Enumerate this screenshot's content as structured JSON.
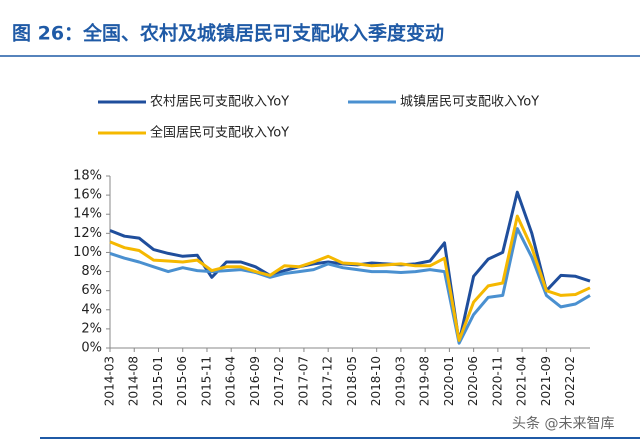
{
  "chart_data": {
    "type": "line",
    "title": "图 26：全国、农村及城镇居民可支配收入季度变动",
    "watermark": "头条 @未来智库",
    "x": [
      "2014-03",
      "2014-06",
      "2014-09",
      "2014-12",
      "2015-03",
      "2015-06",
      "2015-09",
      "2015-12",
      "2016-03",
      "2016-06",
      "2016-09",
      "2016-12",
      "2017-03",
      "2017-06",
      "2017-09",
      "2017-12",
      "2018-03",
      "2018-06",
      "2018-09",
      "2018-12",
      "2019-03",
      "2019-06",
      "2019-09",
      "2019-12",
      "2020-03",
      "2020-06",
      "2020-09",
      "2020-12",
      "2021-03",
      "2021-06",
      "2021-09",
      "2021-12",
      "2022-03",
      "2022-06"
    ],
    "xlim": [
      "2014-03",
      "2022-06"
    ],
    "xticks": [
      "2014-03",
      "2014-08",
      "2015-01",
      "2015-06",
      "2015-11",
      "2016-04",
      "2016-09",
      "2017-02",
      "2017-07",
      "2017-12",
      "2018-05",
      "2018-10",
      "2019-03",
      "2019-08",
      "2020-01",
      "2020-06",
      "2020-11",
      "2021-04",
      "2021-09",
      "2022-02"
    ],
    "ylim": [
      0,
      18
    ],
    "yticks": [
      {
        "value": 0,
        "label": "0%"
      },
      {
        "value": 2,
        "label": "2%"
      },
      {
        "value": 4,
        "label": "4%"
      },
      {
        "value": 6,
        "label": "6%"
      },
      {
        "value": 8,
        "label": "8%"
      },
      {
        "value": 10,
        "label": "10%"
      },
      {
        "value": 12,
        "label": "12%"
      },
      {
        "value": 14,
        "label": "14%"
      },
      {
        "value": 16,
        "label": "16%"
      },
      {
        "value": 18,
        "label": "18%"
      }
    ],
    "series": [
      {
        "name": "农村居民可支配收入YoY",
        "color": "#1f4e9c",
        "values": [
          12.3,
          11.7,
          11.5,
          10.3,
          9.9,
          9.6,
          9.7,
          7.4,
          9.0,
          9.0,
          8.5,
          7.6,
          8.1,
          8.5,
          8.8,
          9.0,
          8.8,
          8.7,
          8.9,
          8.8,
          8.7,
          8.8,
          9.1,
          11.0,
          0.6,
          7.5,
          9.3,
          10.0,
          16.3,
          12.0,
          6.0,
          7.6,
          7.5,
          7.0
        ]
      },
      {
        "name": "城镇居民可支配收入YoY",
        "color": "#4a90d0",
        "values": [
          9.9,
          9.4,
          9.0,
          8.5,
          8.0,
          8.4,
          8.1,
          8.0,
          8.1,
          8.2,
          7.9,
          7.4,
          7.8,
          8.0,
          8.2,
          8.8,
          8.4,
          8.2,
          8.0,
          8.0,
          7.9,
          8.0,
          8.2,
          8.0,
          0.5,
          3.5,
          5.3,
          5.5,
          12.5,
          9.5,
          5.5,
          4.3,
          4.6,
          5.5
        ]
      },
      {
        "name": "全国居民可支配收入YoY",
        "color": "#f5b800",
        "values": [
          11.1,
          10.5,
          10.2,
          9.2,
          9.1,
          9.0,
          9.2,
          8.1,
          8.5,
          8.5,
          8.0,
          7.6,
          8.6,
          8.5,
          9.0,
          9.6,
          8.9,
          8.8,
          8.6,
          8.7,
          8.8,
          8.6,
          8.6,
          9.4,
          0.8,
          4.8,
          6.5,
          6.8,
          13.8,
          10.5,
          6.0,
          5.5,
          5.6,
          6.3
        ]
      }
    ]
  }
}
